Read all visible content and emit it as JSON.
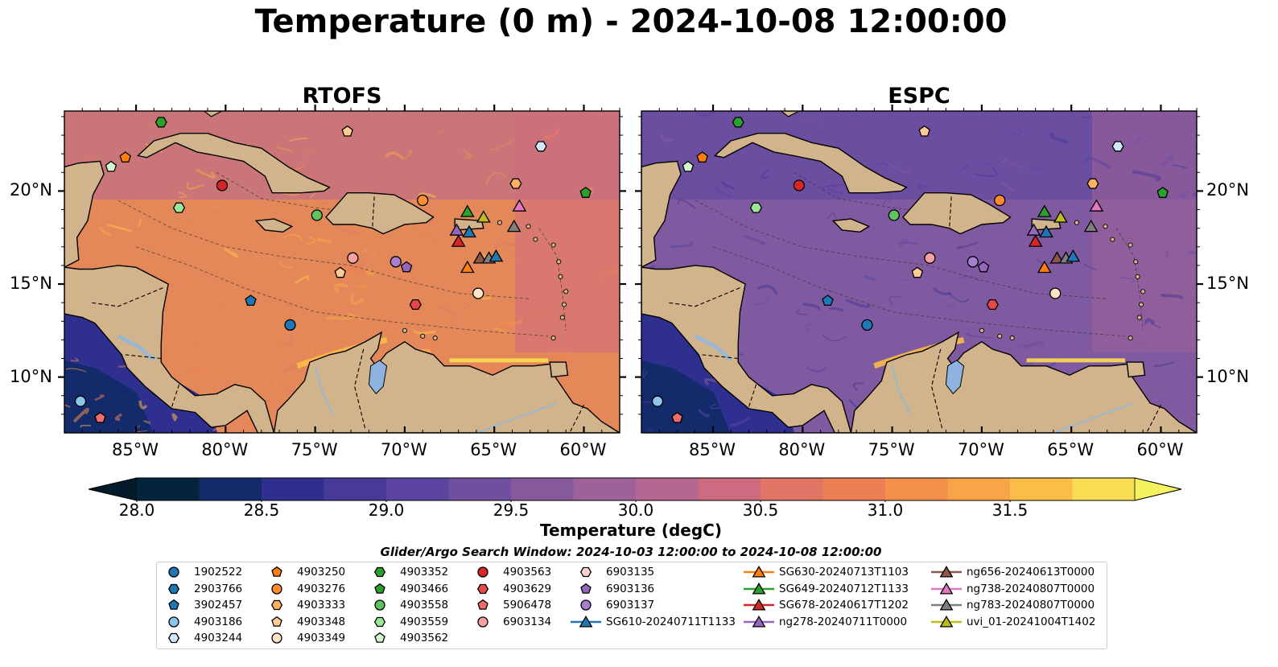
{
  "title": "Temperature (0 m) - 2024-10-08 12:00:00",
  "panels": [
    {
      "title": "RTOFS",
      "ocean_color": "#e4885a",
      "variant": "warm"
    },
    {
      "title": "ESPC",
      "ocean_color": "#7f5aa0",
      "variant": "cool"
    }
  ],
  "map": {
    "lon_range": [
      -89.0,
      -58.0
    ],
    "lat_range": [
      7.0,
      24.3
    ],
    "lon_ticks": [
      "85°W",
      "80°W",
      "75°W",
      "70°W",
      "65°W",
      "60°W"
    ],
    "lat_ticks": [
      "20°N",
      "15°N",
      "10°N"
    ],
    "land_color": "#d2b48c",
    "lake_color": "#8fb3e0"
  },
  "colorbar": {
    "label": "Temperature (degC)",
    "ticks": [
      "28.0",
      "28.5",
      "29.0",
      "29.5",
      "30.0",
      "30.5",
      "31.0",
      "31.5"
    ],
    "colors": [
      "#03243a",
      "#132a6b",
      "#2f2f90",
      "#483a98",
      "#5b45a0",
      "#70509e",
      "#875a9b",
      "#9e6298",
      "#b46891",
      "#cd6c80",
      "#e07566",
      "#ec8054",
      "#f3904a",
      "#f8a547",
      "#fbbd48",
      "#f9dc52"
    ],
    "over_color": "#f2f35f",
    "under_color": "#021a2a"
  },
  "legend": {
    "title": "Glider/Argo Search Window: 2024-10-03 12:00:00 to 2024-10-08 12:00:00",
    "items": [
      {
        "label": "1902522",
        "marker": "circle",
        "color": "#1f77b4"
      },
      {
        "label": "2903766",
        "marker": "hexagon",
        "color": "#1f77b4"
      },
      {
        "label": "3902457",
        "marker": "pentagon",
        "color": "#1f77b4"
      },
      {
        "label": "4903186",
        "marker": "circle",
        "color": "#8dc6ec"
      },
      {
        "label": "4903244",
        "marker": "hexagon",
        "color": "#cfe7f7"
      },
      {
        "label": "4903250",
        "marker": "pentagon",
        "color": "#ff7f0e"
      },
      {
        "label": "4903276",
        "marker": "circle",
        "color": "#ff8c2e"
      },
      {
        "label": "4903333",
        "marker": "hexagon",
        "color": "#ffb060"
      },
      {
        "label": "4903348",
        "marker": "pentagon",
        "color": "#ffcb94"
      },
      {
        "label": "4903349",
        "marker": "circle",
        "color": "#ffe3c6"
      },
      {
        "label": "4903352",
        "marker": "hexagon",
        "color": "#2ca02c"
      },
      {
        "label": "4903466",
        "marker": "pentagon",
        "color": "#2ca02c"
      },
      {
        "label": "4903558",
        "marker": "circle",
        "color": "#5fc35f"
      },
      {
        "label": "4903559",
        "marker": "hexagon",
        "color": "#9be89b"
      },
      {
        "label": "4903562",
        "marker": "pentagon",
        "color": "#d3f7d0"
      },
      {
        "label": "4903563",
        "marker": "circle",
        "color": "#d62728"
      },
      {
        "label": "4903629",
        "marker": "hexagon",
        "color": "#e54848"
      },
      {
        "label": "5906478",
        "marker": "pentagon",
        "color": "#f06b6b"
      },
      {
        "label": "6903134",
        "marker": "circle",
        "color": "#f7a0a0"
      },
      {
        "label": "6903135",
        "marker": "hexagon",
        "color": "#fbd0d0"
      },
      {
        "label": "6903136",
        "marker": "pentagon",
        "color": "#9467bd"
      },
      {
        "label": "6903137",
        "marker": "circle",
        "color": "#a77fcf"
      },
      {
        "label": "SG610-20240711T1133",
        "marker": "triangle",
        "color": "#1f77b4",
        "line": true
      },
      {
        "label": "SG630-20240713T1103",
        "marker": "triangle",
        "color": "#ff7f0e",
        "line": true
      },
      {
        "label": "SG649-20240712T1133",
        "marker": "triangle",
        "color": "#2ca02c",
        "line": true
      },
      {
        "label": "SG678-20240617T1202",
        "marker": "triangle",
        "color": "#d62728",
        "line": true
      },
      {
        "label": "ng278-20240711T0000",
        "marker": "triangle",
        "color": "#9467bd",
        "line": true
      },
      {
        "label": "ng656-20240613T0000",
        "marker": "triangle",
        "color": "#8c564b",
        "line": true
      },
      {
        "label": "ng738-20240807T0000",
        "marker": "triangle",
        "color": "#e377c2",
        "line": true
      },
      {
        "label": "ng783-20240807T0000",
        "marker": "triangle",
        "color": "#7f7f7f",
        "line": true
      },
      {
        "label": "uvi_01-20241004T1402",
        "marker": "triangle",
        "color": "#bcbd22",
        "line": true
      }
    ]
  },
  "observations": [
    {
      "id": "4903352",
      "lon": -83.6,
      "lat": 23.7
    },
    {
      "id": "4903250",
      "lon": -85.6,
      "lat": 21.8
    },
    {
      "id": "4903562",
      "lon": -86.4,
      "lat": 21.3
    },
    {
      "id": "4903348",
      "lon": -73.2,
      "lat": 23.2
    },
    {
      "id": "4903244",
      "lon": -62.4,
      "lat": 22.4
    },
    {
      "id": "4903563",
      "lon": -80.2,
      "lat": 20.3
    },
    {
      "id": "4903559",
      "lon": -82.6,
      "lat": 19.1
    },
    {
      "id": "4903558",
      "lon": -74.9,
      "lat": 18.7
    },
    {
      "id": "4903276",
      "lon": -69.0,
      "lat": 19.5
    },
    {
      "id": "4903333",
      "lon": -63.8,
      "lat": 20.4
    },
    {
      "id": "4903466",
      "lon": -59.9,
      "lat": 19.9
    },
    {
      "id": "6903134",
      "lon": -72.9,
      "lat": 16.4
    },
    {
      "id": "4903348",
      "lon": -73.6,
      "lat": 15.6
    },
    {
      "id": "6903137",
      "lon": -70.5,
      "lat": 16.2
    },
    {
      "id": "6903136",
      "lon": -69.9,
      "lat": 15.9
    },
    {
      "id": "3902457",
      "lon": -78.6,
      "lat": 14.1
    },
    {
      "id": "1902522",
      "lon": -76.4,
      "lat": 12.8
    },
    {
      "id": "4903629",
      "lon": -69.4,
      "lat": 13.9
    },
    {
      "id": "4903349",
      "lon": -65.9,
      "lat": 14.5
    },
    {
      "id": "4903186",
      "lon": -88.1,
      "lat": 8.7
    },
    {
      "id": "5906478",
      "lon": -87.0,
      "lat": 7.8
    }
  ],
  "gliders": [
    {
      "id": "SG649-20240712T1133",
      "lon": -66.5,
      "lat": 18.9
    },
    {
      "id": "uvi_01-20241004T1402",
      "lon": -65.6,
      "lat": 18.6
    },
    {
      "id": "ng738-20240807T0000",
      "lon": -63.6,
      "lat": 19.2
    },
    {
      "id": "ng278-20240711T0000",
      "lon": -67.1,
      "lat": 17.9
    },
    {
      "id": "SG610-20240711T1133",
      "lon": -66.4,
      "lat": 17.8
    },
    {
      "id": "ng783-20240807T0000",
      "lon": -63.9,
      "lat": 18.1
    },
    {
      "id": "SG678-20240617T1202",
      "lon": -67.0,
      "lat": 17.3
    },
    {
      "id": "SG630-20240713T1103",
      "lon": -66.5,
      "lat": 15.9
    },
    {
      "id": "ng656-20240613T0000",
      "lon": -65.8,
      "lat": 16.4
    },
    {
      "id": "ng783-20240807T0000",
      "lon": -65.3,
      "lat": 16.4
    },
    {
      "id": "SG610-20240711T1133",
      "lon": -64.9,
      "lat": 16.5
    }
  ]
}
